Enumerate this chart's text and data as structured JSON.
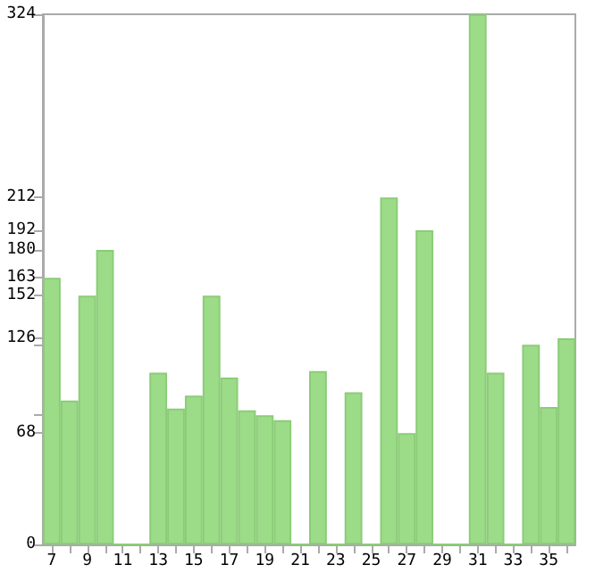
{
  "chart_data": {
    "type": "bar",
    "categories": [
      "7",
      null,
      "9",
      null,
      "11",
      null,
      "13",
      null,
      "15",
      null,
      "17",
      null,
      "19",
      null,
      "21",
      null,
      "23",
      null,
      "25",
      null,
      "27",
      null,
      "29",
      null,
      "31",
      null,
      "33",
      null,
      "35",
      null
    ],
    "values": [
      163,
      88,
      152,
      180,
      0,
      0,
      105,
      83,
      91,
      152,
      102,
      82,
      79,
      76,
      0,
      106,
      0,
      93,
      0,
      212,
      68,
      192,
      0,
      0,
      324,
      105,
      0,
      122,
      84,
      126
    ],
    "color": "#9cdc88",
    "ylim": [
      0,
      324
    ],
    "yticks": [
      0,
      68,
      {
        "value": 79,
        "label": null
      },
      {
        "value": 122,
        "label": null
      },
      126,
      152,
      163,
      180,
      192,
      212,
      324
    ],
    "grid": false
  }
}
